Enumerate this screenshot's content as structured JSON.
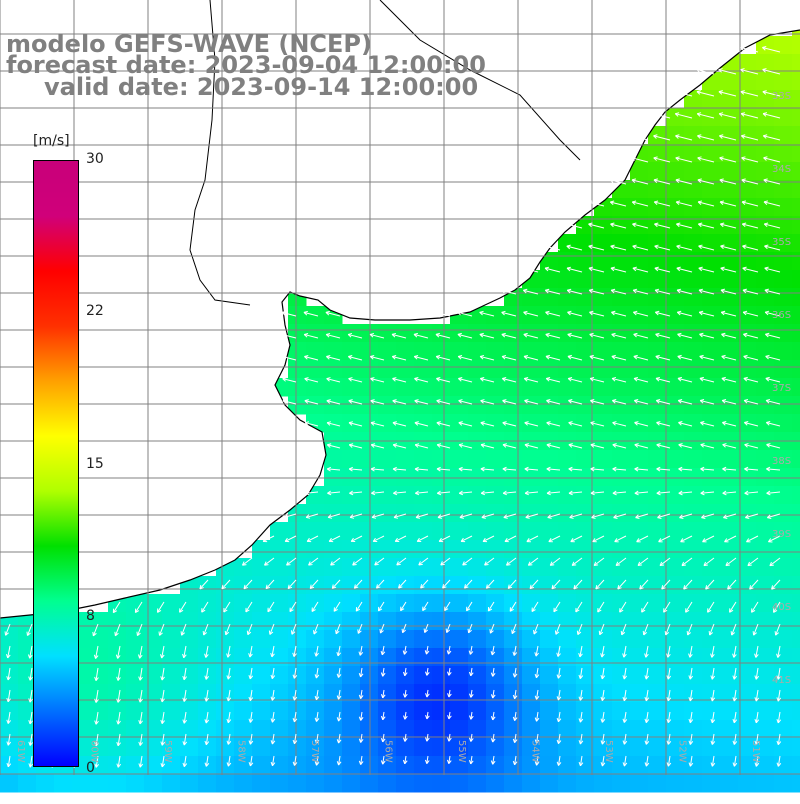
{
  "title": {
    "line1": "modelo GEFS-WAVE (NCEP)",
    "line2": "forecast date: 2023-09-04 12:00:00",
    "line3": "valid date: 2023-09-14 12:00:00"
  },
  "colorbar": {
    "units": "[m/s]",
    "ticks": [
      "30",
      "22",
      "15",
      "8",
      "0"
    ],
    "tick_values": [
      30,
      22,
      15,
      8,
      0
    ],
    "range": [
      0,
      30
    ],
    "colors": [
      "#0000ff",
      "#0070ff",
      "#00e0ff",
      "#00ff90",
      "#00e000",
      "#b0ff00",
      "#ffff00",
      "#ffa000",
      "#ff3000",
      "#ff0000",
      "#d0007a",
      "#c8007a"
    ]
  },
  "map": {
    "lon_labels": [
      "61W",
      "60W",
      "59W",
      "58W",
      "57W",
      "56W",
      "55W",
      "54W",
      "53W",
      "52W",
      "51W"
    ],
    "lat_labels": [
      "33S",
      "34S",
      "35S",
      "36S",
      "37S",
      "38S",
      "39S",
      "40S",
      "41S"
    ],
    "land_color": "#ffffff",
    "grid_color": "#808080",
    "arrow_color": "#ffffff",
    "field": "wind speed and direction"
  }
}
